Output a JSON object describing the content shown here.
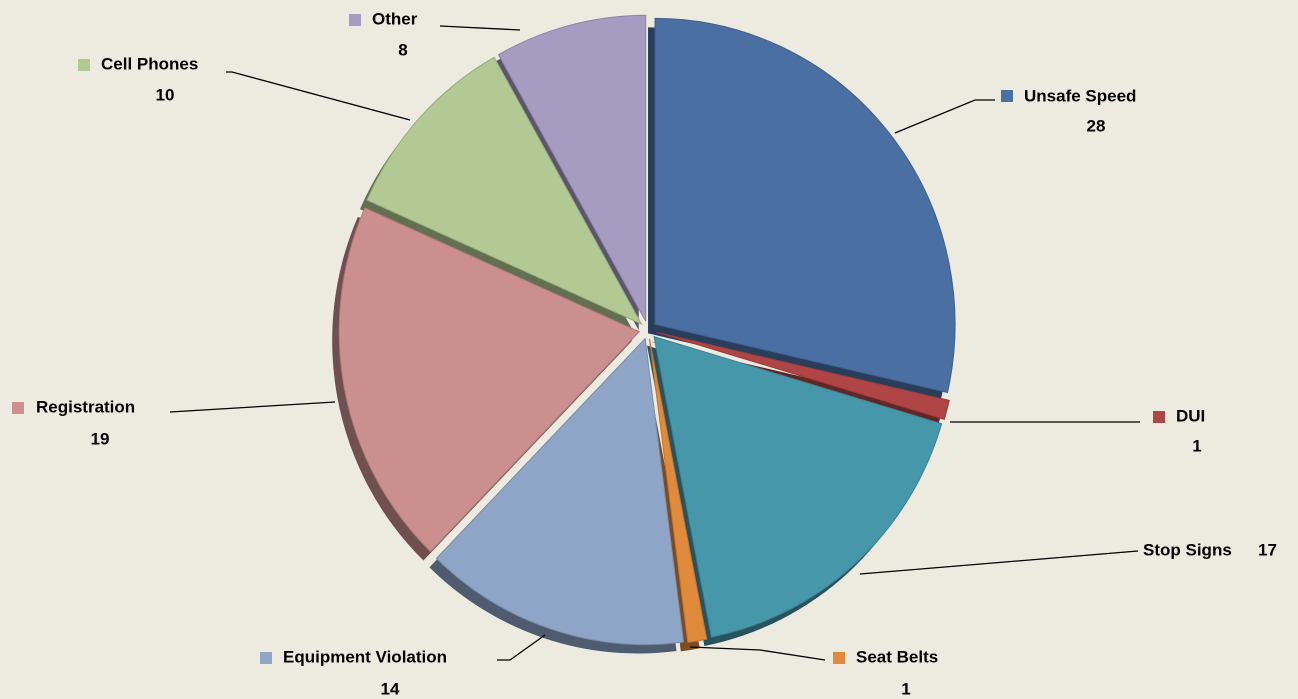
{
  "chart_data": {
    "type": "pie",
    "categories": [
      "Unsafe Speed",
      "DUI",
      "Stop Signs",
      "Seat Belts",
      "Equipment Violation",
      "Registration",
      "Cell Phones",
      "Other"
    ],
    "values": [
      28,
      1,
      17,
      1,
      14,
      19,
      10,
      8
    ],
    "colors": [
      "#4a70a3",
      "#b04545",
      "#4797aa",
      "#e08a3c",
      "#8fa5c8",
      "#cc8f8f",
      "#b3c994",
      "#a69bc0"
    ]
  }
}
